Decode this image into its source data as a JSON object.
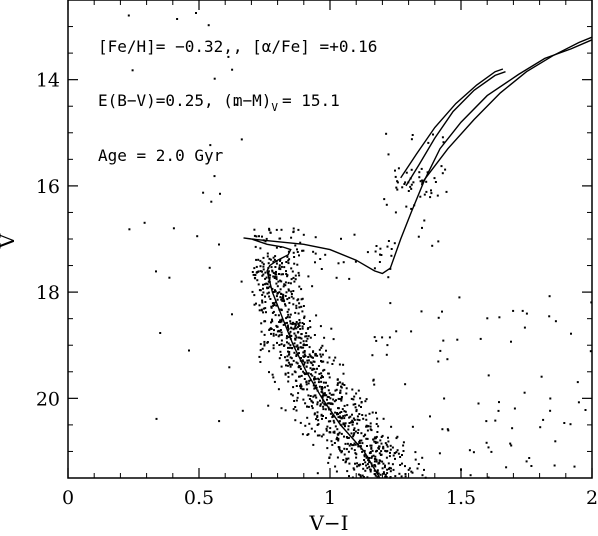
{
  "chart_data": {
    "type": "scatter",
    "xlabel": "V−I",
    "ylabel": "V",
    "xlim": [
      0,
      2
    ],
    "ylim": [
      21.5,
      12.5
    ],
    "y_inverted": true,
    "grid": false,
    "x_ticks": [
      {
        "value": 0,
        "label": "0"
      },
      {
        "value": 0.5,
        "label": "0.5"
      },
      {
        "value": 1,
        "label": "1"
      },
      {
        "value": 1.5,
        "label": "1.5"
      },
      {
        "value": 2,
        "label": "2"
      }
    ],
    "y_ticks": [
      {
        "value": 14,
        "label": "14"
      },
      {
        "value": 16,
        "label": "16"
      },
      {
        "value": 18,
        "label": "18"
      },
      {
        "value": 20,
        "label": "20"
      }
    ],
    "annotations": [
      {
        "id": "feh",
        "text": "[Fe/H]= −0.32,, [α/Fe] =+0.16"
      },
      {
        "id": "ebv",
        "text": "E(B−V)=0.25, (m−M)",
        "sub": "V",
        "tail": "= 15.1"
      },
      {
        "id": "age",
        "text": "Age = 2.0 Gyr"
      }
    ],
    "isochrone": {
      "main_to_rgb": [
        [
          1.19,
          21.5
        ],
        [
          1.13,
          21.0
        ],
        [
          1.04,
          20.5
        ],
        [
          0.97,
          20.0
        ],
        [
          0.91,
          19.5
        ],
        [
          0.86,
          19.0
        ],
        [
          0.82,
          18.5
        ],
        [
          0.78,
          18.0
        ],
        [
          0.77,
          17.8
        ],
        [
          0.76,
          17.6
        ],
        [
          0.77,
          17.5
        ],
        [
          0.8,
          17.4
        ],
        [
          0.84,
          17.3
        ],
        [
          0.85,
          17.2
        ],
        [
          0.82,
          17.15
        ],
        [
          0.76,
          17.1
        ],
        [
          0.7,
          17.0
        ],
        [
          0.67,
          16.98
        ],
        [
          0.7,
          17.0
        ],
        [
          0.8,
          17.05
        ],
        [
          0.9,
          17.1
        ],
        [
          1.0,
          17.2
        ],
        [
          1.1,
          17.4
        ],
        [
          1.17,
          17.6
        ],
        [
          1.2,
          17.65
        ],
        [
          1.23,
          17.55
        ],
        [
          1.27,
          17.0
        ],
        [
          1.31,
          16.5
        ],
        [
          1.36,
          15.9
        ],
        [
          1.42,
          15.3
        ],
        [
          1.5,
          14.8
        ],
        [
          1.6,
          14.3
        ],
        [
          1.72,
          13.9
        ],
        [
          1.82,
          13.6
        ],
        [
          1.92,
          13.42
        ],
        [
          2.0,
          13.25
        ]
      ],
      "agb": [
        [
          1.35,
          15.95
        ],
        [
          1.45,
          15.3
        ],
        [
          1.55,
          14.75
        ],
        [
          1.65,
          14.25
        ],
        [
          1.75,
          13.85
        ],
        [
          1.85,
          13.55
        ],
        [
          1.95,
          13.3
        ],
        [
          2.0,
          13.2
        ]
      ],
      "clump_branch_a": [
        [
          1.29,
          16.0
        ],
        [
          1.34,
          15.6
        ],
        [
          1.4,
          15.1
        ],
        [
          1.47,
          14.6
        ],
        [
          1.55,
          14.2
        ],
        [
          1.63,
          13.92
        ],
        [
          1.67,
          13.85
        ]
      ],
      "clump_branch_b": [
        [
          1.27,
          15.85
        ],
        [
          1.33,
          15.4
        ],
        [
          1.4,
          14.9
        ],
        [
          1.48,
          14.45
        ],
        [
          1.56,
          14.1
        ],
        [
          1.63,
          13.85
        ],
        [
          1.66,
          13.8
        ]
      ]
    },
    "scatter_fields": [
      {
        "region": "main_sequence",
        "n": 1000,
        "x_center_formula": "isochrone",
        "y_range": [
          17.3,
          21.5
        ],
        "spread": 0.06
      },
      {
        "region": "turnoff",
        "n": 60,
        "x_range": [
          0.7,
          0.9
        ],
        "y_range": [
          16.8,
          17.7
        ]
      },
      {
        "region": "subgiant",
        "n": 30,
        "x_range": [
          0.9,
          1.25
        ],
        "y_range": [
          16.9,
          17.8
        ]
      },
      {
        "region": "red_giant",
        "n": 40,
        "x_range": [
          1.2,
          1.45
        ],
        "y_range": [
          15.0,
          17.5
        ]
      },
      {
        "region": "red_clump",
        "n": 20,
        "x_range": [
          1.25,
          1.4
        ],
        "y_range": [
          15.7,
          16.1
        ]
      },
      {
        "region": "blue_field",
        "n": 30,
        "x_range": [
          0.2,
          0.7
        ],
        "y_range": [
          12.6,
          20.5
        ]
      },
      {
        "region": "red_field",
        "n": 90,
        "x_range": [
          1.15,
          2.0
        ],
        "y_range": [
          18.0,
          21.5
        ]
      }
    ]
  }
}
